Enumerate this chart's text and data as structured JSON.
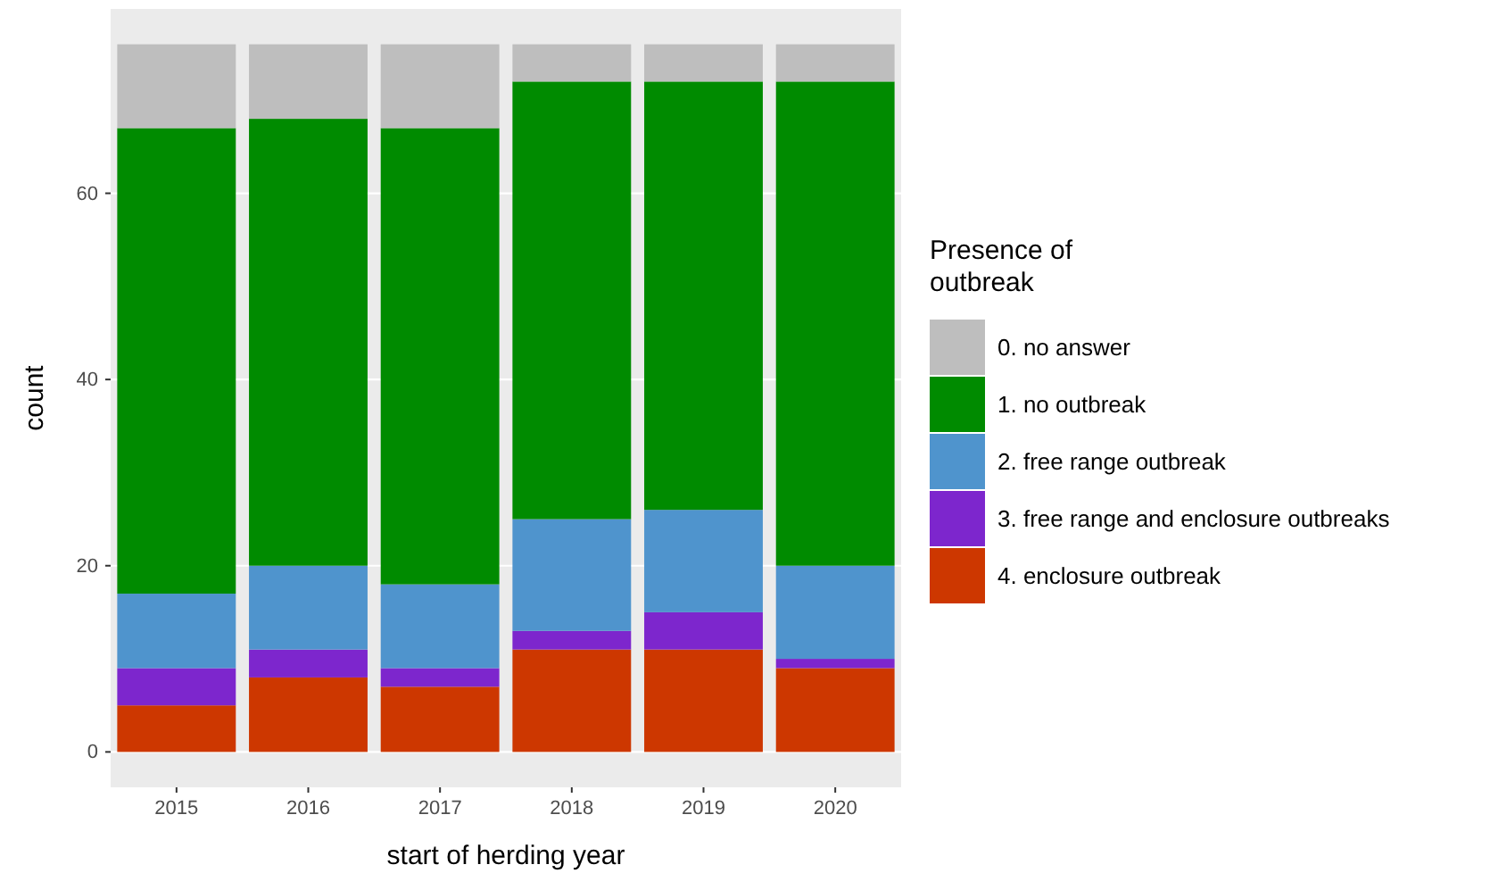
{
  "chart_data": {
    "type": "bar",
    "stacked": true,
    "xlabel": "start of herding year",
    "ylabel": "count",
    "legend_title": "Presence of\noutbreak",
    "legend": "right",
    "grid": "y",
    "categories": [
      "2015",
      "2016",
      "2017",
      "2018",
      "2019",
      "2020"
    ],
    "ylim": [
      -3.8,
      79.8
    ],
    "yticks": [
      0,
      20,
      40,
      60
    ],
    "series": [
      {
        "name": "4. enclosure outbreak",
        "color": "#cd3700",
        "values": [
          5,
          8,
          7,
          11,
          11,
          9
        ]
      },
      {
        "name": "3. free range and enclosure outbreaks",
        "color": "#7d26cd",
        "values": [
          4,
          3,
          2,
          2,
          4,
          1
        ]
      },
      {
        "name": "2. free range outbreak",
        "color": "#4f94cd",
        "values": [
          8,
          9,
          9,
          12,
          11,
          10
        ]
      },
      {
        "name": "1. no outbreak",
        "color": "#008b00",
        "values": [
          50,
          48,
          49,
          47,
          46,
          52
        ]
      },
      {
        "name": "0. no answer",
        "color": "#bebebe",
        "values": [
          9,
          8,
          9,
          4,
          4,
          4
        ]
      }
    ]
  }
}
